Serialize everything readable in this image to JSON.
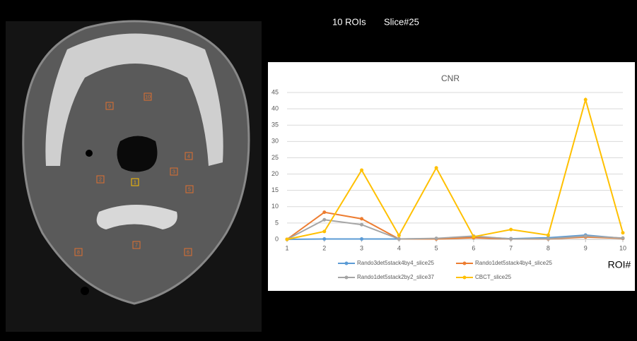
{
  "header": {
    "rois": "10 ROIs",
    "slice": "Slice#25"
  },
  "image": {
    "roi_labels": [
      "1",
      "2",
      "3",
      "4",
      "5",
      "6",
      "7",
      "8",
      "9",
      "10"
    ]
  },
  "chart_data": {
    "type": "line",
    "title": "CNR",
    "x_label": "ROI#",
    "x": [
      1,
      2,
      3,
      4,
      5,
      6,
      7,
      8,
      9,
      10
    ],
    "xlim": [
      1,
      10
    ],
    "xticks": [
      1,
      2,
      3,
      4,
      5,
      6,
      7,
      8,
      9,
      10
    ],
    "ylim": [
      0,
      45
    ],
    "yticks": [
      0,
      5,
      10,
      15,
      20,
      25,
      30,
      35,
      40,
      45
    ],
    "grid": true,
    "series": [
      {
        "name": "Rando3det5stack4by4_slice25",
        "color": "#5b9bd5",
        "values": [
          0,
          0.1,
          0.1,
          0.1,
          0.2,
          0.8,
          0.2,
          0.5,
          1.3,
          0.3
        ]
      },
      {
        "name": "Rando1det5stack4by4_slice25",
        "color": "#ed7d31",
        "values": [
          0,
          8.3,
          6.3,
          0.1,
          0.1,
          0.5,
          0.1,
          0.1,
          0.7,
          0.3
        ]
      },
      {
        "name": "Rando1det5stack2by2_slice37",
        "color": "#a5a5a5",
        "values": [
          0,
          6,
          4.5,
          0.1,
          0.3,
          1,
          0.1,
          0.2,
          1,
          0.4
        ]
      },
      {
        "name": "CBCT_slice25",
        "color": "#ffc000",
        "values": [
          0,
          2.4,
          21.2,
          1.2,
          21.9,
          0.8,
          3,
          1.3,
          42.8,
          2
        ]
      }
    ]
  }
}
